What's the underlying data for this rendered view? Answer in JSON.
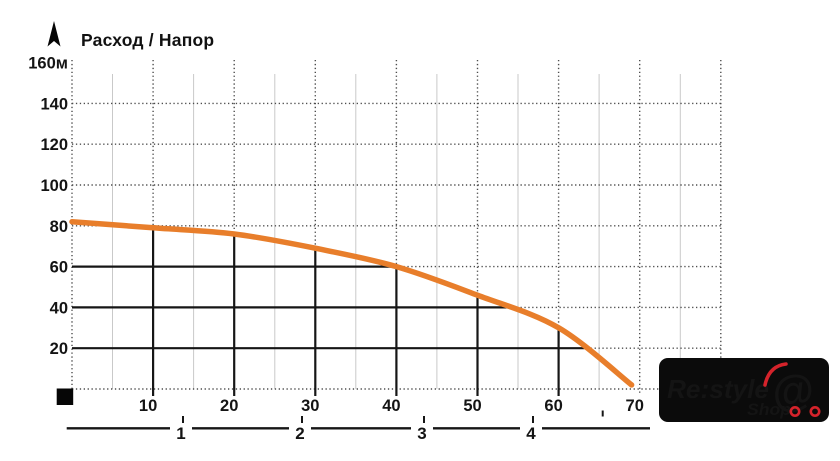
{
  "title": "Расход / Напор",
  "chart_data": {
    "type": "line",
    "title": "Расход / Напор",
    "x_tick_labels": [
      "10",
      "20",
      "30",
      "40",
      "50",
      "60",
      "70"
    ],
    "y_tick_labels": [
      "160м",
      "140",
      "120",
      "100",
      "80",
      "60",
      "40",
      "20"
    ],
    "xlim": [
      0,
      80
    ],
    "ylim": [
      0,
      160
    ],
    "grid": "dotted major every 10x/20y, light minor verticals every 5x",
    "legend": "none",
    "series": [
      {
        "name": "Напор",
        "color": "#E87E2B",
        "points": [
          [
            0,
            82
          ],
          [
            10,
            79
          ],
          [
            20,
            76
          ],
          [
            30,
            69
          ],
          [
            40,
            60
          ],
          [
            50,
            46
          ],
          [
            60,
            30
          ],
          [
            69,
            2
          ]
        ]
      }
    ],
    "guide_vertical_x": [
      10,
      20,
      30,
      40,
      50,
      60
    ],
    "guide_horizontal_y": [
      60,
      40,
      20
    ],
    "secondary_axis_labels": [
      "1",
      "2",
      "3",
      "4"
    ]
  },
  "logo": {
    "brand": "Re:style",
    "sub": "Shop",
    "cart_symbol": "@",
    "red": "#D5232B",
    "background": "#0b0b0b"
  }
}
